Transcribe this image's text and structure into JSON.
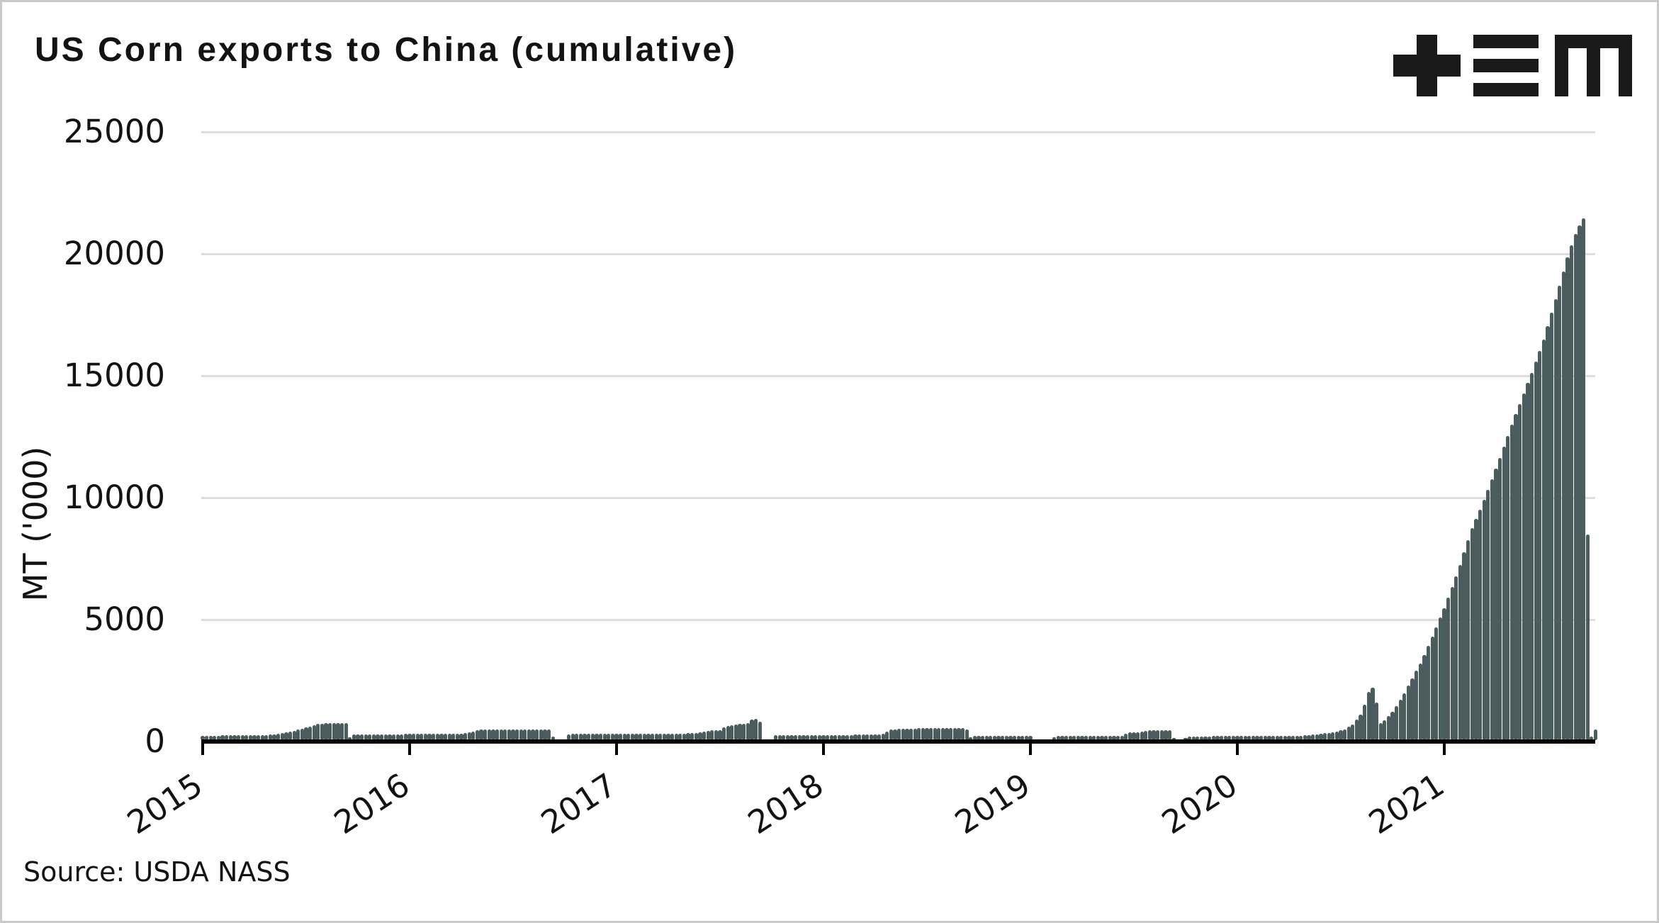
{
  "header": {
    "title": "US Corn exports to China (cumulative)",
    "logo": "plus-triple-bar-m-logo"
  },
  "footer": {
    "source": "Source: USDA NASS"
  },
  "colors": {
    "bar": "#4b5c5e",
    "gridline": "#dedede",
    "axis": "#000000",
    "text": "#131313",
    "frame_border": "#c9c9c9",
    "background": "#ffffff",
    "logo": "#1a1a1a"
  },
  "chart_data": {
    "type": "bar",
    "title": "US Corn exports to China (cumulative)",
    "xlabel": "",
    "ylabel": "MT ('000)",
    "unit": "thousand metric tons, cumulative by marketing year",
    "resolution": "weekly bars interpolated from anchor points [decimal_year, value]",
    "grid": "horizontal",
    "legend": "none",
    "ylim": [
      0,
      25000
    ],
    "y_ticks": [
      0,
      5000,
      10000,
      15000,
      20000,
      25000
    ],
    "x_ticks": [
      2015,
      2016,
      2017,
      2018,
      2019,
      2020,
      2021
    ],
    "x_range": [
      2015.0,
      2021.74
    ],
    "anchors": [
      [
        2015.0,
        180
      ],
      [
        2015.1,
        190
      ],
      [
        2015.2,
        205
      ],
      [
        2015.3,
        215
      ],
      [
        2015.33,
        220
      ],
      [
        2015.37,
        260
      ],
      [
        2015.45,
        400
      ],
      [
        2015.52,
        560
      ],
      [
        2015.56,
        660
      ],
      [
        2015.6,
        700
      ],
      [
        2015.695,
        710
      ],
      [
        2015.705,
        90
      ],
      [
        2015.73,
        240
      ],
      [
        2015.9,
        245
      ],
      [
        2016.0,
        248
      ],
      [
        2016.2,
        252
      ],
      [
        2016.26,
        262
      ],
      [
        2016.3,
        330
      ],
      [
        2016.34,
        430
      ],
      [
        2016.5,
        440
      ],
      [
        2016.685,
        450
      ],
      [
        2016.695,
        20
      ],
      [
        2016.75,
        20
      ],
      [
        2016.77,
        255
      ],
      [
        2017.0,
        260
      ],
      [
        2017.3,
        270
      ],
      [
        2017.38,
        285
      ],
      [
        2017.41,
        340
      ],
      [
        2017.44,
        390
      ],
      [
        2017.5,
        405
      ],
      [
        2017.53,
        570
      ],
      [
        2017.57,
        645
      ],
      [
        2017.62,
        670
      ],
      [
        2017.645,
        700
      ],
      [
        2017.655,
        860
      ],
      [
        2017.69,
        880
      ],
      [
        2017.705,
        25
      ],
      [
        2017.75,
        25
      ],
      [
        2017.77,
        205
      ],
      [
        2018.0,
        215
      ],
      [
        2018.25,
        220
      ],
      [
        2018.29,
        250
      ],
      [
        2018.32,
        425
      ],
      [
        2018.38,
        465
      ],
      [
        2018.5,
        490
      ],
      [
        2018.69,
        505
      ],
      [
        2018.705,
        60
      ],
      [
        2018.72,
        175
      ],
      [
        2019.0,
        180
      ],
      [
        2019.01,
        15
      ],
      [
        2019.1,
        15
      ],
      [
        2019.12,
        165
      ],
      [
        2019.44,
        170
      ],
      [
        2019.47,
        315
      ],
      [
        2019.54,
        335
      ],
      [
        2019.56,
        395
      ],
      [
        2019.68,
        400
      ],
      [
        2019.695,
        15
      ],
      [
        2019.74,
        15
      ],
      [
        2019.76,
        155
      ],
      [
        2020.0,
        165
      ],
      [
        2020.2,
        175
      ],
      [
        2020.33,
        190
      ],
      [
        2020.4,
        255
      ],
      [
        2020.47,
        335
      ],
      [
        2020.52,
        440
      ],
      [
        2020.56,
        660
      ],
      [
        2020.6,
        1100
      ],
      [
        2020.62,
        1560
      ],
      [
        2020.635,
        2000
      ],
      [
        2020.65,
        2130
      ],
      [
        2020.665,
        2160
      ],
      [
        2020.685,
        650
      ],
      [
        2020.71,
        800
      ],
      [
        2020.75,
        1150
      ],
      [
        2020.8,
        1800
      ],
      [
        2020.85,
        2600
      ],
      [
        2020.9,
        3400
      ],
      [
        2020.95,
        4400
      ],
      [
        2021.0,
        5400
      ],
      [
        2021.07,
        7000
      ],
      [
        2021.13,
        8600
      ],
      [
        2021.2,
        10000
      ],
      [
        2021.27,
        11600
      ],
      [
        2021.33,
        13000
      ],
      [
        2021.42,
        15000
      ],
      [
        2021.48,
        16400
      ],
      [
        2021.55,
        18400
      ],
      [
        2021.6,
        19900
      ],
      [
        2021.64,
        20900
      ],
      [
        2021.67,
        21350
      ],
      [
        2021.685,
        21560
      ],
      [
        2021.697,
        0
      ],
      [
        2021.705,
        80
      ],
      [
        2021.72,
        250
      ],
      [
        2021.73,
        420
      ],
      [
        2021.74,
        500
      ]
    ],
    "peak_value": 21560,
    "peak_year": 2021.685
  }
}
